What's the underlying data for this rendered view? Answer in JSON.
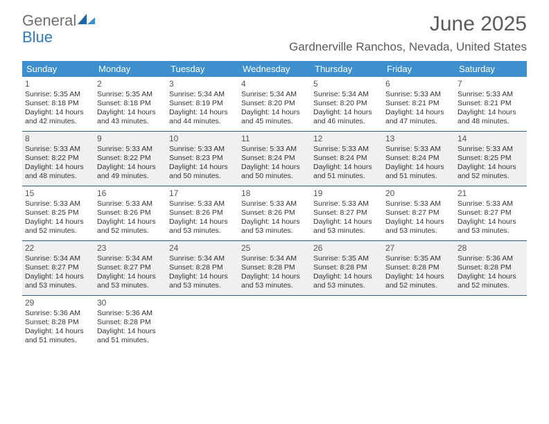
{
  "logo": {
    "general": "General",
    "blue": "Blue"
  },
  "title": "June 2025",
  "location": "Gardnerville Ranchos, Nevada, United States",
  "header_bg": "#3d8fce",
  "row_border_color": "#2c5a84",
  "alt_bg": "#eef0f2",
  "cell_bg": "#ffffff",
  "dow": [
    "Sunday",
    "Monday",
    "Tuesday",
    "Wednesday",
    "Thursday",
    "Friday",
    "Saturday"
  ],
  "weeks": [
    {
      "alt": false,
      "days": [
        {
          "n": "1",
          "sr": "Sunrise: 5:35 AM",
          "ss": "Sunset: 8:18 PM",
          "d1": "Daylight: 14 hours",
          "d2": "and 42 minutes."
        },
        {
          "n": "2",
          "sr": "Sunrise: 5:35 AM",
          "ss": "Sunset: 8:18 PM",
          "d1": "Daylight: 14 hours",
          "d2": "and 43 minutes."
        },
        {
          "n": "3",
          "sr": "Sunrise: 5:34 AM",
          "ss": "Sunset: 8:19 PM",
          "d1": "Daylight: 14 hours",
          "d2": "and 44 minutes."
        },
        {
          "n": "4",
          "sr": "Sunrise: 5:34 AM",
          "ss": "Sunset: 8:20 PM",
          "d1": "Daylight: 14 hours",
          "d2": "and 45 minutes."
        },
        {
          "n": "5",
          "sr": "Sunrise: 5:34 AM",
          "ss": "Sunset: 8:20 PM",
          "d1": "Daylight: 14 hours",
          "d2": "and 46 minutes."
        },
        {
          "n": "6",
          "sr": "Sunrise: 5:33 AM",
          "ss": "Sunset: 8:21 PM",
          "d1": "Daylight: 14 hours",
          "d2": "and 47 minutes."
        },
        {
          "n": "7",
          "sr": "Sunrise: 5:33 AM",
          "ss": "Sunset: 8:21 PM",
          "d1": "Daylight: 14 hours",
          "d2": "and 48 minutes."
        }
      ]
    },
    {
      "alt": true,
      "days": [
        {
          "n": "8",
          "sr": "Sunrise: 5:33 AM",
          "ss": "Sunset: 8:22 PM",
          "d1": "Daylight: 14 hours",
          "d2": "and 48 minutes."
        },
        {
          "n": "9",
          "sr": "Sunrise: 5:33 AM",
          "ss": "Sunset: 8:22 PM",
          "d1": "Daylight: 14 hours",
          "d2": "and 49 minutes."
        },
        {
          "n": "10",
          "sr": "Sunrise: 5:33 AM",
          "ss": "Sunset: 8:23 PM",
          "d1": "Daylight: 14 hours",
          "d2": "and 50 minutes."
        },
        {
          "n": "11",
          "sr": "Sunrise: 5:33 AM",
          "ss": "Sunset: 8:24 PM",
          "d1": "Daylight: 14 hours",
          "d2": "and 50 minutes."
        },
        {
          "n": "12",
          "sr": "Sunrise: 5:33 AM",
          "ss": "Sunset: 8:24 PM",
          "d1": "Daylight: 14 hours",
          "d2": "and 51 minutes."
        },
        {
          "n": "13",
          "sr": "Sunrise: 5:33 AM",
          "ss": "Sunset: 8:24 PM",
          "d1": "Daylight: 14 hours",
          "d2": "and 51 minutes."
        },
        {
          "n": "14",
          "sr": "Sunrise: 5:33 AM",
          "ss": "Sunset: 8:25 PM",
          "d1": "Daylight: 14 hours",
          "d2": "and 52 minutes."
        }
      ]
    },
    {
      "alt": false,
      "days": [
        {
          "n": "15",
          "sr": "Sunrise: 5:33 AM",
          "ss": "Sunset: 8:25 PM",
          "d1": "Daylight: 14 hours",
          "d2": "and 52 minutes."
        },
        {
          "n": "16",
          "sr": "Sunrise: 5:33 AM",
          "ss": "Sunset: 8:26 PM",
          "d1": "Daylight: 14 hours",
          "d2": "and 52 minutes."
        },
        {
          "n": "17",
          "sr": "Sunrise: 5:33 AM",
          "ss": "Sunset: 8:26 PM",
          "d1": "Daylight: 14 hours",
          "d2": "and 53 minutes."
        },
        {
          "n": "18",
          "sr": "Sunrise: 5:33 AM",
          "ss": "Sunset: 8:26 PM",
          "d1": "Daylight: 14 hours",
          "d2": "and 53 minutes."
        },
        {
          "n": "19",
          "sr": "Sunrise: 5:33 AM",
          "ss": "Sunset: 8:27 PM",
          "d1": "Daylight: 14 hours",
          "d2": "and 53 minutes."
        },
        {
          "n": "20",
          "sr": "Sunrise: 5:33 AM",
          "ss": "Sunset: 8:27 PM",
          "d1": "Daylight: 14 hours",
          "d2": "and 53 minutes."
        },
        {
          "n": "21",
          "sr": "Sunrise: 5:33 AM",
          "ss": "Sunset: 8:27 PM",
          "d1": "Daylight: 14 hours",
          "d2": "and 53 minutes."
        }
      ]
    },
    {
      "alt": true,
      "days": [
        {
          "n": "22",
          "sr": "Sunrise: 5:34 AM",
          "ss": "Sunset: 8:27 PM",
          "d1": "Daylight: 14 hours",
          "d2": "and 53 minutes."
        },
        {
          "n": "23",
          "sr": "Sunrise: 5:34 AM",
          "ss": "Sunset: 8:27 PM",
          "d1": "Daylight: 14 hours",
          "d2": "and 53 minutes."
        },
        {
          "n": "24",
          "sr": "Sunrise: 5:34 AM",
          "ss": "Sunset: 8:28 PM",
          "d1": "Daylight: 14 hours",
          "d2": "and 53 minutes."
        },
        {
          "n": "25",
          "sr": "Sunrise: 5:34 AM",
          "ss": "Sunset: 8:28 PM",
          "d1": "Daylight: 14 hours",
          "d2": "and 53 minutes."
        },
        {
          "n": "26",
          "sr": "Sunrise: 5:35 AM",
          "ss": "Sunset: 8:28 PM",
          "d1": "Daylight: 14 hours",
          "d2": "and 53 minutes."
        },
        {
          "n": "27",
          "sr": "Sunrise: 5:35 AM",
          "ss": "Sunset: 8:28 PM",
          "d1": "Daylight: 14 hours",
          "d2": "and 52 minutes."
        },
        {
          "n": "28",
          "sr": "Sunrise: 5:36 AM",
          "ss": "Sunset: 8:28 PM",
          "d1": "Daylight: 14 hours",
          "d2": "and 52 minutes."
        }
      ]
    },
    {
      "alt": false,
      "days": [
        {
          "n": "29",
          "sr": "Sunrise: 5:36 AM",
          "ss": "Sunset: 8:28 PM",
          "d1": "Daylight: 14 hours",
          "d2": "and 51 minutes."
        },
        {
          "n": "30",
          "sr": "Sunrise: 5:36 AM",
          "ss": "Sunset: 8:28 PM",
          "d1": "Daylight: 14 hours",
          "d2": "and 51 minutes."
        },
        {
          "empty": true
        },
        {
          "empty": true
        },
        {
          "empty": true
        },
        {
          "empty": true
        },
        {
          "empty": true
        }
      ]
    }
  ]
}
